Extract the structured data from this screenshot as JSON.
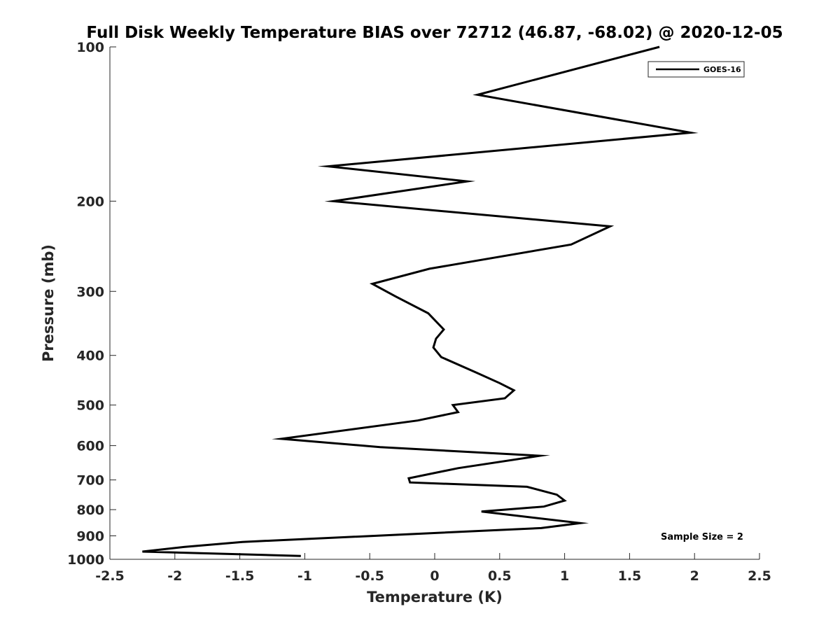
{
  "chart_data": {
    "type": "line",
    "title": "Full Disk Weekly Temperature BIAS over 72712 (46.87, -68.02) @ 2020-12-05",
    "xlabel": "Temperature (K)",
    "ylabel": "Pressure (mb)",
    "xlim": [
      -2.5,
      2.5
    ],
    "ylim": [
      100,
      1000
    ],
    "y_scale": "log",
    "y_reversed": true,
    "grid": false,
    "legend_position": "top-right",
    "x_ticks": [
      {
        "value": -2.5,
        "label": "-2.5"
      },
      {
        "value": -2,
        "label": "-2"
      },
      {
        "value": -1.5,
        "label": "-1.5"
      },
      {
        "value": -1,
        "label": "-1"
      },
      {
        "value": -0.5,
        "label": "-0.5"
      },
      {
        "value": 0,
        "label": "0"
      },
      {
        "value": 0.5,
        "label": "0.5"
      },
      {
        "value": 1,
        "label": "1"
      },
      {
        "value": 1.5,
        "label": "1.5"
      },
      {
        "value": 2,
        "label": "2"
      },
      {
        "value": 2.5,
        "label": "2.5"
      }
    ],
    "y_ticks": [
      {
        "value": 100,
        "label": "100"
      },
      {
        "value": 200,
        "label": "200"
      },
      {
        "value": 300,
        "label": "300"
      },
      {
        "value": 400,
        "label": "400"
      },
      {
        "value": 500,
        "label": "500"
      },
      {
        "value": 600,
        "label": "600"
      },
      {
        "value": 700,
        "label": "700"
      },
      {
        "value": 800,
        "label": "800"
      },
      {
        "value": 900,
        "label": "900"
      },
      {
        "value": 1000,
        "label": "1000"
      }
    ],
    "series": [
      {
        "name": "GOES-16",
        "color": "#000000",
        "points": [
          {
            "x": 1.73,
            "y": 100
          },
          {
            "x": 0.33,
            "y": 124
          },
          {
            "x": 1.97,
            "y": 147
          },
          {
            "x": -0.82,
            "y": 171
          },
          {
            "x": 0.25,
            "y": 183
          },
          {
            "x": -0.78,
            "y": 200
          },
          {
            "x": 1.35,
            "y": 224
          },
          {
            "x": 1.05,
            "y": 243
          },
          {
            "x": -0.04,
            "y": 271
          },
          {
            "x": -0.48,
            "y": 290
          },
          {
            "x": -0.3,
            "y": 307
          },
          {
            "x": -0.05,
            "y": 331
          },
          {
            "x": 0.07,
            "y": 356
          },
          {
            "x": 0.01,
            "y": 371
          },
          {
            "x": -0.01,
            "y": 386
          },
          {
            "x": 0.05,
            "y": 403
          },
          {
            "x": 0.32,
            "y": 432
          },
          {
            "x": 0.5,
            "y": 453
          },
          {
            "x": 0.61,
            "y": 468
          },
          {
            "x": 0.54,
            "y": 485
          },
          {
            "x": 0.14,
            "y": 500
          },
          {
            "x": 0.18,
            "y": 516
          },
          {
            "x": -0.13,
            "y": 536
          },
          {
            "x": -1.18,
            "y": 582
          },
          {
            "x": -0.42,
            "y": 604
          },
          {
            "x": 0.81,
            "y": 628
          },
          {
            "x": 0.18,
            "y": 664
          },
          {
            "x": -0.2,
            "y": 695
          },
          {
            "x": -0.19,
            "y": 708
          },
          {
            "x": 0.71,
            "y": 722
          },
          {
            "x": 0.94,
            "y": 748
          },
          {
            "x": 1.0,
            "y": 768
          },
          {
            "x": 0.84,
            "y": 789
          },
          {
            "x": 0.36,
            "y": 807
          },
          {
            "x": 1.12,
            "y": 850
          },
          {
            "x": 0.82,
            "y": 869
          },
          {
            "x": -1.48,
            "y": 925
          },
          {
            "x": -1.93,
            "y": 946
          },
          {
            "x": -2.25,
            "y": 966
          },
          {
            "x": -1.03,
            "y": 985
          }
        ]
      }
    ],
    "annotation": "Sample Size = 2"
  }
}
